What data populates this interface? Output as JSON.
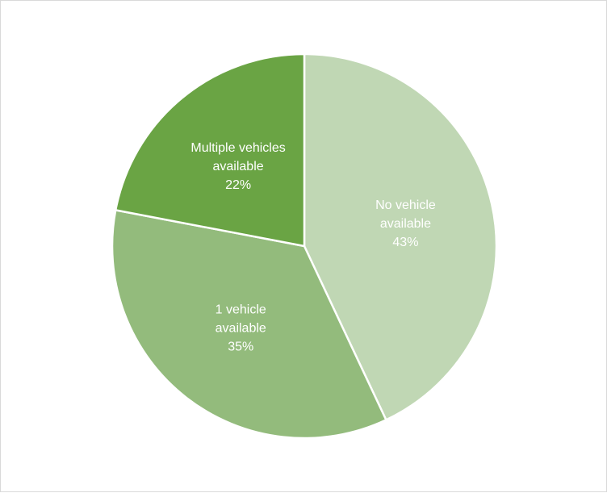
{
  "chart_data": {
    "type": "pie",
    "title": "",
    "legend": "none",
    "series": [
      {
        "values": [
          43,
          35,
          22
        ]
      }
    ],
    "categories": [
      "No vehicle available",
      "1 vehicle available",
      "Multiple vehicles available"
    ],
    "slices": [
      {
        "label_lines": [
          "No vehicle",
          "available"
        ],
        "value": 43,
        "value_label": "43%",
        "color": "#c0d7b4"
      },
      {
        "label_lines": [
          "1 vehicle",
          "available"
        ],
        "value": 35,
        "value_label": "35%",
        "color": "#93bb7c"
      },
      {
        "label_lines": [
          "Multiple vehicles",
          "available"
        ],
        "value": 22,
        "value_label": "22%",
        "color": "#6aa444"
      }
    ],
    "start_angle_deg": 0,
    "direction": "clockwise",
    "slice_border_color": "#ffffff"
  }
}
